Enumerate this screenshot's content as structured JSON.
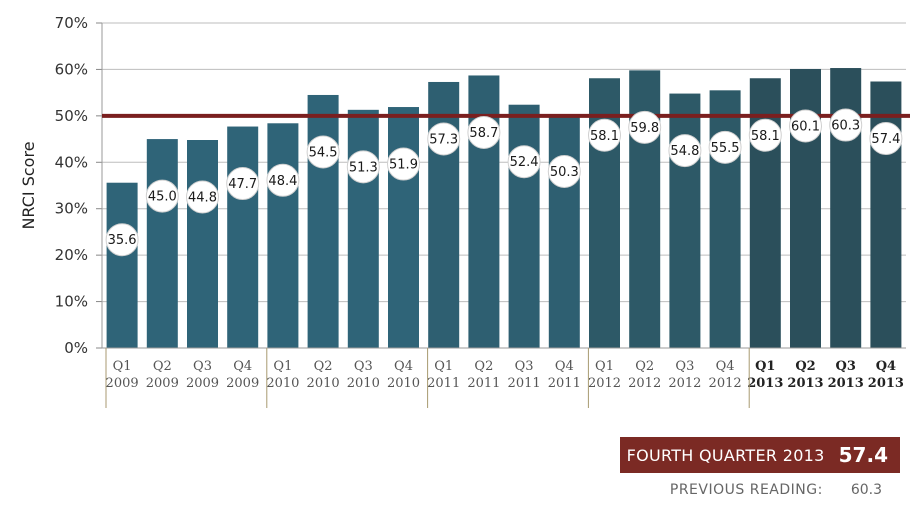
{
  "chart_data": {
    "type": "bar",
    "ylabel": "NRCI Score",
    "ylim": [
      0,
      70
    ],
    "yticks": [
      0,
      10,
      20,
      30,
      40,
      50,
      60,
      70
    ],
    "ytick_labels": [
      "0%",
      "10%",
      "20%",
      "30%",
      "40%",
      "50%",
      "60%",
      "70%"
    ],
    "reference_line": 50,
    "categories": [
      {
        "q": "Q1",
        "y": "2009",
        "bold": false
      },
      {
        "q": "Q2",
        "y": "2009",
        "bold": false
      },
      {
        "q": "Q3",
        "y": "2009",
        "bold": false
      },
      {
        "q": "Q4",
        "y": "2009",
        "bold": false
      },
      {
        "q": "Q1",
        "y": "2010",
        "bold": false
      },
      {
        "q": "Q2",
        "y": "2010",
        "bold": false
      },
      {
        "q": "Q3",
        "y": "2010",
        "bold": false
      },
      {
        "q": "Q4",
        "y": "2010",
        "bold": false
      },
      {
        "q": "Q1",
        "y": "2011",
        "bold": false
      },
      {
        "q": "Q2",
        "y": "2011",
        "bold": false
      },
      {
        "q": "Q3",
        "y": "2011",
        "bold": false
      },
      {
        "q": "Q4",
        "y": "2011",
        "bold": false
      },
      {
        "q": "Q1",
        "y": "2012",
        "bold": false
      },
      {
        "q": "Q2",
        "y": "2012",
        "bold": false
      },
      {
        "q": "Q3",
        "y": "2012",
        "bold": false
      },
      {
        "q": "Q4",
        "y": "2012",
        "bold": false
      },
      {
        "q": "Q1",
        "y": "2013",
        "bold": true
      },
      {
        "q": "Q2",
        "y": "2013",
        "bold": true
      },
      {
        "q": "Q3",
        "y": "2013",
        "bold": true
      },
      {
        "q": "Q4",
        "y": "2013",
        "bold": true
      }
    ],
    "values": [
      35.6,
      45.0,
      44.8,
      47.7,
      48.4,
      54.5,
      51.3,
      51.9,
      57.3,
      58.7,
      52.4,
      50.3,
      58.1,
      59.8,
      54.8,
      55.5,
      58.1,
      60.1,
      60.3,
      57.4
    ],
    "value_labels": [
      "35.6",
      "45.0",
      "44.8",
      "47.7",
      "48.4",
      "54.5",
      "51.3",
      "51.9",
      "57.3",
      "58.7",
      "52.4",
      "50.3",
      "58.1",
      "59.8",
      "54.8",
      "55.5",
      "58.1",
      "60.1",
      "60.3",
      "57.4"
    ],
    "bar_colors": [
      "#2f6478",
      "#2f6478",
      "#2f6478",
      "#2f6478",
      "#2f6478",
      "#2f6478",
      "#2f6478",
      "#2f6478",
      "#2e5f71",
      "#2e5f71",
      "#2e5f71",
      "#2e5f71",
      "#2d5967",
      "#2d5967",
      "#2d5967",
      "#2d5967",
      "#2b4f5b",
      "#2b4f5b",
      "#2b4f5b",
      "#2b4f5b"
    ],
    "reference_color": "#7a1f1f"
  },
  "callout": {
    "label": "FOURTH QUARTER 2013",
    "value": "57.4",
    "background": "#7b2a24"
  },
  "previous": {
    "label": "PREVIOUS READING:",
    "value": "60.3"
  }
}
